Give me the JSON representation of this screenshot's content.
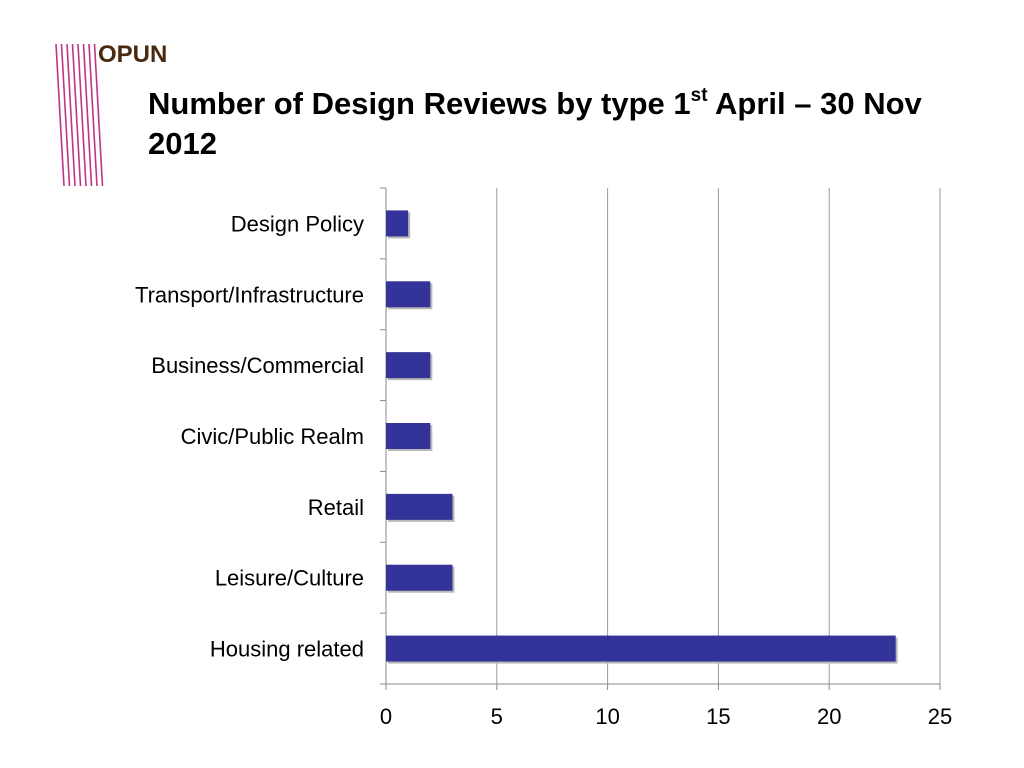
{
  "brand": {
    "logo_text": "OPUN",
    "stripe_color": "#c0357f",
    "logo_color": "#4a2a0f"
  },
  "title": {
    "part1": "Number of Design Reviews by type 1",
    "sup": "st",
    "part2": " April – 30 Nov 2012"
  },
  "chart_data": {
    "type": "bar",
    "orientation": "horizontal",
    "categories": [
      "Design Policy",
      "Transport/Infrastructure",
      "Business/Commercial",
      "Civic/Public Realm",
      "Retail",
      "Leisure/Culture",
      "Housing related"
    ],
    "values": [
      1,
      2,
      2,
      2,
      3,
      3,
      23
    ],
    "xlim": [
      0,
      25
    ],
    "xticks": [
      0,
      5,
      10,
      15,
      20,
      25
    ],
    "grid": "vertical",
    "bar_color": "#333399",
    "title": "Number of Design Reviews by type 1st April – 30 Nov 2012"
  }
}
